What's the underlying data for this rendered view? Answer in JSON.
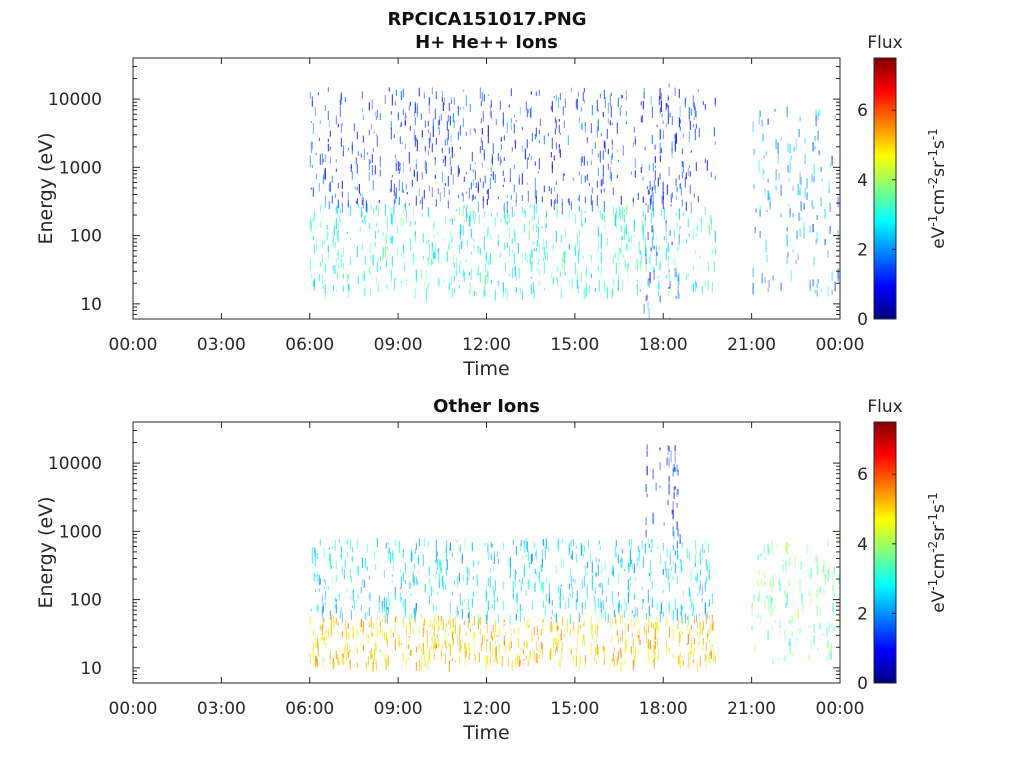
{
  "figure": {
    "title_line1": "RPCICA151017.PNG"
  },
  "chart_data": [
    {
      "type": "heatmap",
      "title": "H+ He++ Ions",
      "xlabel": "Time",
      "ylabel": "Energy (eV)",
      "x_ticks": [
        "00:00",
        "03:00",
        "06:00",
        "09:00",
        "12:00",
        "15:00",
        "18:00",
        "21:00",
        "00:00"
      ],
      "x_range_hours": [
        0,
        24
      ],
      "y_scale": "log",
      "y_range": [
        6,
        40000
      ],
      "y_ticks": [
        10,
        100,
        1000,
        10000
      ],
      "y_tick_labels": [
        "10",
        "100",
        "1000",
        "10000"
      ],
      "colorbar": {
        "title": "Flux",
        "label": "eV-1cm-2sr-1s-1",
        "range": [
          0,
          7.5
        ],
        "ticks": [
          "0",
          "2",
          "4",
          "6"
        ],
        "colormap": "jet"
      },
      "data_gaps_hours": [
        [
          0,
          6
        ],
        [
          19.9,
          21
        ]
      ],
      "activity_regions": [
        {
          "t": [
            6,
            19.8
          ],
          "energy_eV": [
            15,
            300
          ],
          "typical_flux": 3.0
        },
        {
          "t": [
            6,
            19.8
          ],
          "energy_eV": [
            300,
            15000
          ],
          "typical_flux": 1.3
        },
        {
          "t": [
            17.3,
            18.6
          ],
          "energy_eV": [
            6,
            20000
          ],
          "typical_flux": 1.5
        },
        {
          "t": [
            21,
            24
          ],
          "energy_eV": [
            15,
            8000
          ],
          "typical_flux": 2.0
        }
      ]
    },
    {
      "type": "heatmap",
      "title": "Other Ions",
      "xlabel": "Time",
      "ylabel": "Energy (eV)",
      "x_ticks": [
        "00:00",
        "03:00",
        "06:00",
        "09:00",
        "12:00",
        "15:00",
        "18:00",
        "21:00",
        "00:00"
      ],
      "x_range_hours": [
        0,
        24
      ],
      "y_scale": "log",
      "y_range": [
        6,
        40000
      ],
      "y_ticks": [
        10,
        100,
        1000,
        10000
      ],
      "y_tick_labels": [
        "10",
        "100",
        "1000",
        "10000"
      ],
      "colorbar": {
        "title": "Flux",
        "label": "eV-1cm-2sr-1s-1",
        "range": [
          0,
          7.5
        ],
        "ticks": [
          "0",
          "2",
          "4",
          "6"
        ],
        "colormap": "jet"
      },
      "data_gaps_hours": [
        [
          0,
          6
        ],
        [
          19.9,
          21
        ]
      ],
      "activity_regions": [
        {
          "t": [
            6,
            19.8
          ],
          "energy_eV": [
            12,
            60
          ],
          "typical_flux": 5.0
        },
        {
          "t": [
            6,
            19.8
          ],
          "energy_eV": [
            60,
            800
          ],
          "typical_flux": 2.6
        },
        {
          "t": [
            17.3,
            18.6
          ],
          "energy_eV": [
            800,
            20000
          ],
          "typical_flux": 1.2
        },
        {
          "t": [
            21,
            24
          ],
          "energy_eV": [
            12,
            800
          ],
          "typical_flux": 3.5
        }
      ]
    }
  ]
}
